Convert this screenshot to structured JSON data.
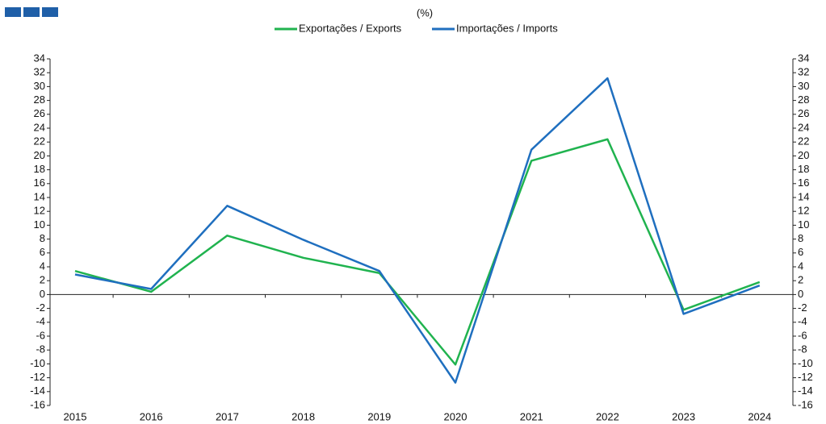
{
  "chart_data": {
    "type": "line",
    "subtitle": "(%)",
    "categories": [
      "2015",
      "2016",
      "2017",
      "2018",
      "2019",
      "2020",
      "2021",
      "2022",
      "2023",
      "2024"
    ],
    "series": [
      {
        "name": "Exportações / Exports",
        "color": "#20b34f",
        "values": [
          3.4,
          0.4,
          8.5,
          5.3,
          3.1,
          -10.1,
          19.3,
          22.4,
          -2.2,
          1.8
        ]
      },
      {
        "name": "Importações / Imports",
        "color": "#1f6fbf",
        "values": [
          2.9,
          0.8,
          12.8,
          7.9,
          3.4,
          -12.7,
          20.9,
          31.2,
          -2.8,
          1.3
        ]
      }
    ],
    "ylim": [
      -16,
      34
    ],
    "yticks": [
      -16,
      -14,
      -12,
      -10,
      -8,
      -6,
      -4,
      -2,
      0,
      2,
      4,
      6,
      8,
      10,
      12,
      14,
      16,
      18,
      20,
      22,
      24,
      26,
      28,
      30,
      32,
      34
    ],
    "y2lim": [
      -16,
      34
    ],
    "y2ticks": [
      -16,
      -14,
      -12,
      -10,
      -8,
      -6,
      -4,
      -2,
      0,
      2,
      4,
      6,
      8,
      10,
      12,
      14,
      16,
      18,
      20,
      22,
      24,
      26,
      28,
      30,
      32,
      34
    ],
    "legend": "top"
  }
}
